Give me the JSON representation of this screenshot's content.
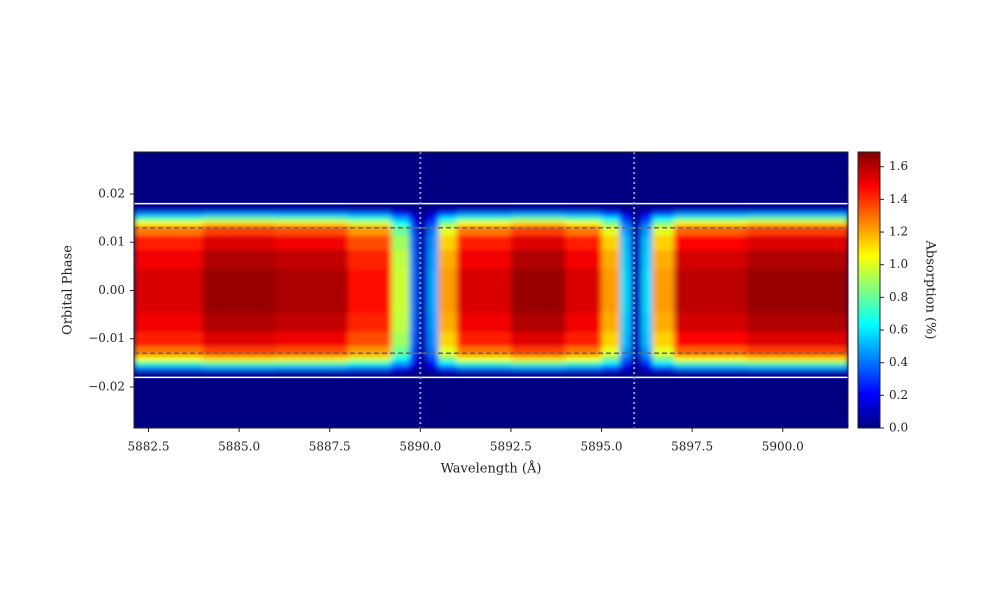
{
  "chart_data": {
    "type": "heatmap",
    "x_label": "Wavelength (Å)",
    "y_label": "Orbital Phase",
    "colorbar_label": "Absorption (%)",
    "colormap": "jet",
    "x_edges": [
      5882.1,
      5884,
      5886,
      5888,
      5889.2,
      5889.7,
      5889.9,
      5890.2,
      5890.5,
      5891,
      5892.5,
      5894,
      5895.0,
      5895.5,
      5895.8,
      5896.1,
      5896.4,
      5897,
      5899,
      5901.8
    ],
    "y_edges": [
      -0.0285,
      -0.018,
      -0.0165,
      -0.0155,
      -0.0145,
      -0.0135,
      -0.0115,
      -0.0085,
      -0.0045,
      0.0045,
      0.0085,
      0.0115,
      0.0135,
      0.0145,
      0.0155,
      0.0165,
      0.018,
      0.0287
    ],
    "z": [
      [
        0,
        0,
        0,
        0,
        0,
        0,
        0,
        0,
        0,
        0,
        0,
        0,
        0,
        0,
        0,
        0,
        0,
        0,
        0
      ],
      [
        0.05,
        0.05,
        0.05,
        0.05,
        0.03,
        0.01,
        0,
        0.02,
        0.04,
        0.05,
        0.05,
        0.05,
        0.04,
        0.02,
        0,
        0.02,
        0.04,
        0.05,
        0.05
      ],
      [
        0.43,
        0.46,
        0.45,
        0.41,
        0.27,
        0.11,
        0.02,
        0.14,
        0.34,
        0.43,
        0.46,
        0.43,
        0.34,
        0.16,
        0.02,
        0.16,
        0.34,
        0.44,
        0.46
      ],
      [
        0.76,
        0.82,
        0.8,
        0.72,
        0.48,
        0.2,
        0.04,
        0.24,
        0.6,
        0.76,
        0.82,
        0.76,
        0.6,
        0.28,
        0.04,
        0.28,
        0.6,
        0.78,
        0.82
      ],
      [
        1.05,
        1.12,
        1.1,
        0.99,
        0.66,
        0.28,
        0.06,
        0.33,
        0.83,
        1.05,
        1.12,
        1.05,
        0.83,
        0.39,
        0.06,
        0.39,
        0.83,
        1.08,
        1.12
      ],
      [
        1.28,
        1.38,
        1.35,
        1.22,
        0.81,
        0.34,
        0.07,
        0.41,
        1.01,
        1.28,
        1.38,
        1.28,
        1.01,
        0.47,
        0.07,
        0.47,
        1.01,
        1.32,
        1.38
      ],
      [
        1.43,
        1.53,
        1.5,
        1.35,
        0.9,
        0.38,
        0.08,
        0.45,
        1.13,
        1.43,
        1.53,
        1.43,
        1.13,
        0.53,
        0.08,
        0.53,
        1.13,
        1.47,
        1.53
      ],
      [
        1.5,
        1.61,
        1.58,
        1.42,
        0.95,
        0.4,
        0.08,
        0.47,
        1.19,
        1.5,
        1.61,
        1.5,
        1.19,
        0.55,
        0.08,
        0.55,
        1.19,
        1.55,
        1.61
      ],
      [
        1.54,
        1.65,
        1.62,
        1.46,
        0.97,
        0.41,
        0.08,
        0.49,
        1.22,
        1.54,
        1.65,
        1.54,
        1.22,
        0.57,
        0.08,
        0.57,
        1.22,
        1.59,
        1.65
      ],
      [
        1.5,
        1.61,
        1.58,
        1.42,
        0.95,
        0.4,
        0.08,
        0.47,
        1.19,
        1.5,
        1.61,
        1.5,
        1.19,
        0.55,
        0.08,
        0.55,
        1.19,
        1.55,
        1.61
      ],
      [
        1.43,
        1.53,
        1.5,
        1.35,
        0.9,
        0.38,
        0.08,
        0.45,
        1.13,
        1.43,
        1.53,
        1.43,
        1.13,
        0.53,
        0.08,
        0.53,
        1.13,
        1.47,
        1.53
      ],
      [
        1.28,
        1.38,
        1.35,
        1.22,
        0.81,
        0.34,
        0.07,
        0.41,
        1.01,
        1.28,
        1.38,
        1.28,
        1.01,
        0.47,
        0.07,
        0.47,
        1.01,
        1.32,
        1.38
      ],
      [
        1.05,
        1.12,
        1.1,
        0.99,
        0.66,
        0.28,
        0.06,
        0.33,
        0.83,
        1.05,
        1.12,
        1.05,
        0.83,
        0.39,
        0.06,
        0.39,
        0.83,
        1.08,
        1.12
      ],
      [
        0.76,
        0.82,
        0.8,
        0.72,
        0.48,
        0.2,
        0.04,
        0.24,
        0.6,
        0.76,
        0.82,
        0.76,
        0.6,
        0.28,
        0.04,
        0.28,
        0.6,
        0.78,
        0.82
      ],
      [
        0.43,
        0.46,
        0.45,
        0.41,
        0.27,
        0.11,
        0.02,
        0.14,
        0.34,
        0.43,
        0.46,
        0.43,
        0.34,
        0.16,
        0.02,
        0.16,
        0.34,
        0.44,
        0.46
      ],
      [
        0.05,
        0.05,
        0.05,
        0.05,
        0.03,
        0.01,
        0,
        0.02,
        0.04,
        0.05,
        0.05,
        0.05,
        0.04,
        0.02,
        0,
        0.02,
        0.04,
        0.05,
        0.05
      ],
      [
        0,
        0,
        0,
        0,
        0,
        0,
        0,
        0,
        0,
        0,
        0,
        0,
        0,
        0,
        0,
        0,
        0,
        0,
        0
      ]
    ],
    "xlim": [
      5882.1,
      5901.8
    ],
    "ylim": [
      -0.0285,
      0.0287
    ],
    "clim": [
      0,
      1.69
    ],
    "xticks": [
      5882.5,
      {
        "value": 5885,
        "label": "5885.0"
      },
      5887.5,
      {
        "value": 5890,
        "label": "5890.0"
      },
      5892.5,
      {
        "value": 5895,
        "label": "5895.0"
      },
      5897.5,
      {
        "value": 5900,
        "label": "5900.0"
      }
    ],
    "yticks": [
      {
        "value": -0.02,
        "label": "−0.02"
      },
      {
        "value": -0.01,
        "label": "−0.01"
      },
      {
        "value": 0,
        "label": "0.00"
      },
      0.01,
      0.02
    ],
    "cticks": [
      {
        "value": 0,
        "label": "0.0"
      },
      0.2,
      0.4,
      0.6,
      0.8,
      {
        "value": 1,
        "label": "1.0"
      },
      1.2,
      1.4,
      1.6
    ],
    "hlines": [
      {
        "value": 0.018,
        "color": "#ffffff",
        "style": "solid"
      },
      {
        "value": -0.018,
        "color": "#ffffff",
        "style": "solid"
      },
      {
        "value": 0.013,
        "color": "#666666",
        "style": "dashed"
      },
      {
        "value": -0.013,
        "color": "#666666",
        "style": "dashed"
      }
    ],
    "vlines": [
      {
        "value": 5890.0,
        "color": "#6aa6e8",
        "style": "dotted"
      },
      {
        "value": 5895.9,
        "color": "#6aa6e8",
        "style": "dotted"
      }
    ]
  }
}
